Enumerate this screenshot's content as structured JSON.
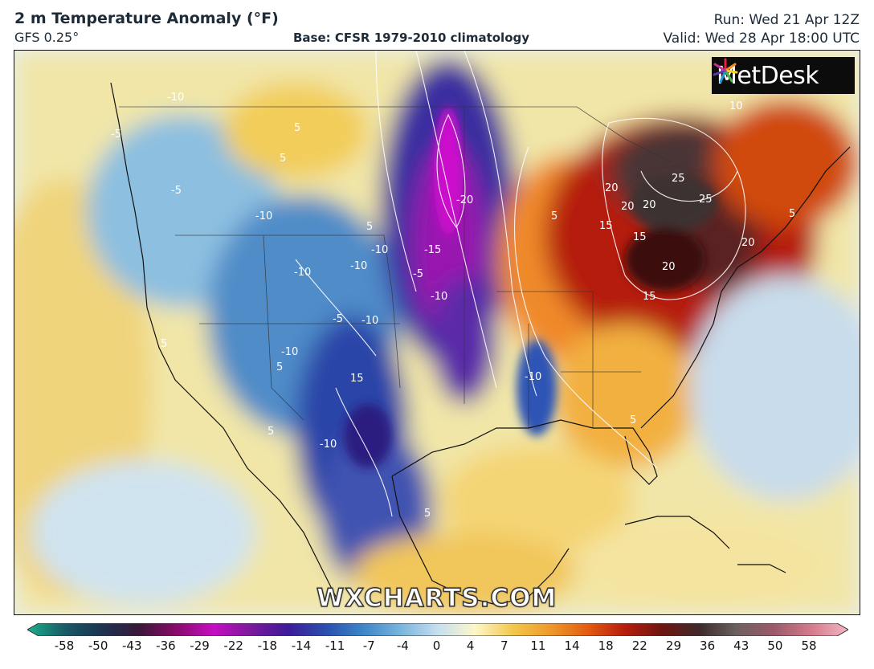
{
  "header": {
    "title": "2 m Temperature Anomaly (°F)",
    "model": "GFS 0.25°",
    "base": "Base: CFSR 1979-2010 climatology",
    "run": "Run: Wed 21 Apr 12Z",
    "valid": "Valid: Wed 28 Apr 18:00 UTC"
  },
  "brand": {
    "logo_text": "MetDesk",
    "watermark": "WXCHARTS.COM"
  },
  "colorbar": {
    "ticks": [
      "-58",
      "-50",
      "-43",
      "-36",
      "-29",
      "-22",
      "-18",
      "-14",
      "-11",
      "-7",
      "-4",
      "0",
      "4",
      "7",
      "11",
      "14",
      "18",
      "22",
      "29",
      "36",
      "43",
      "50",
      "58"
    ],
    "colors": [
      "#1bb08a",
      "#1a5a66",
      "#1b3350",
      "#3b1838",
      "#8a0a6a",
      "#c40fc4",
      "#7a1a9a",
      "#3d1a9a",
      "#2a4fae",
      "#3c86c8",
      "#79b4dc",
      "#c6dff0",
      "#fdf7c8",
      "#f2c84e",
      "#ee9a2a",
      "#e35d12",
      "#b81d0c",
      "#6e1510",
      "#3e2a2a",
      "#6c6060",
      "#9a5a6a",
      "#d47a8a",
      "#f3b6c4"
    ]
  },
  "map": {
    "contour_labels": [
      "-10",
      "5",
      "-5",
      "5",
      "-10",
      "-5",
      "-20",
      "-15",
      "-5",
      "-10",
      "5",
      "-10",
      "-10",
      "-5",
      "-10",
      "-10",
      "5",
      "15",
      "-10",
      "5",
      "-10",
      "-10",
      "10",
      "20",
      "25",
      "15",
      "20",
      "20",
      "15",
      "20",
      "20",
      "25",
      "15",
      "5",
      "5",
      "5",
      "5",
      "5"
    ]
  }
}
